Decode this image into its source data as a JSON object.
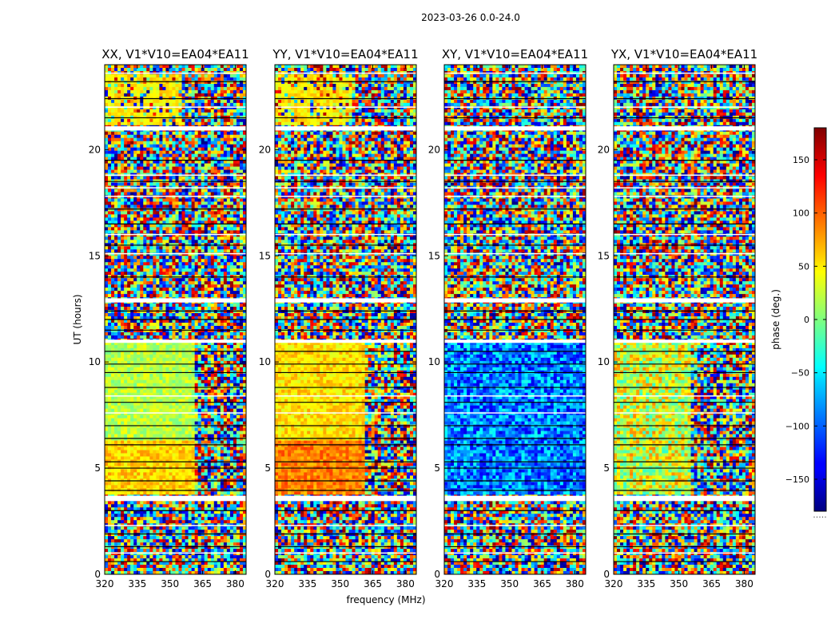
{
  "suptitle": "2023-03-26 0.0-24.0",
  "xlabel": "frequency (MHz)",
  "ylabel": "UT (hours)",
  "colorbar": {
    "label": "phase (deg.)",
    "range": [
      -180,
      180
    ],
    "ticks": [
      150,
      100,
      50,
      0,
      -50,
      -100,
      -150
    ],
    "tick_labels": [
      "150",
      "100",
      "50",
      "0",
      "−50",
      "−100",
      "−150"
    ],
    "colormap": "jet",
    "bottom_text": "....."
  },
  "chart_data": [
    {
      "type": "heatmap",
      "title": "XX, V1*V10=EA04*EA11",
      "xlim": [
        320,
        385
      ],
      "ylim": [
        0,
        24
      ],
      "x_ticks": [
        320,
        335,
        350,
        365,
        380
      ],
      "y_ticks": [
        0,
        5,
        10,
        15,
        20
      ],
      "z_range": [
        -180,
        180
      ],
      "z_unit": "deg"
    },
    {
      "type": "heatmap",
      "title": "YY, V1*V10=EA04*EA11",
      "xlim": [
        320,
        385
      ],
      "ylim": [
        0,
        24
      ],
      "x_ticks": [
        320,
        335,
        350,
        365,
        380
      ],
      "y_ticks": [
        0,
        5,
        10,
        15,
        20
      ],
      "z_range": [
        -180,
        180
      ],
      "z_unit": "deg"
    },
    {
      "type": "heatmap",
      "title": "XY, V1*V10=EA04*EA11",
      "xlim": [
        320,
        385
      ],
      "ylim": [
        0,
        24
      ],
      "x_ticks": [
        320,
        335,
        350,
        365,
        380
      ],
      "y_ticks": [
        0,
        5,
        10,
        15,
        20
      ],
      "z_range": [
        -180,
        180
      ],
      "z_unit": "deg"
    },
    {
      "type": "heatmap",
      "title": "YX, V1*V10=EA04*EA11",
      "xlim": [
        320,
        385
      ],
      "ylim": [
        0,
        24
      ],
      "x_ticks": [
        320,
        335,
        350,
        365,
        380
      ],
      "y_ticks": [
        0,
        5,
        10,
        15,
        20
      ],
      "z_range": [
        -180,
        180
      ],
      "z_unit": "deg"
    }
  ]
}
